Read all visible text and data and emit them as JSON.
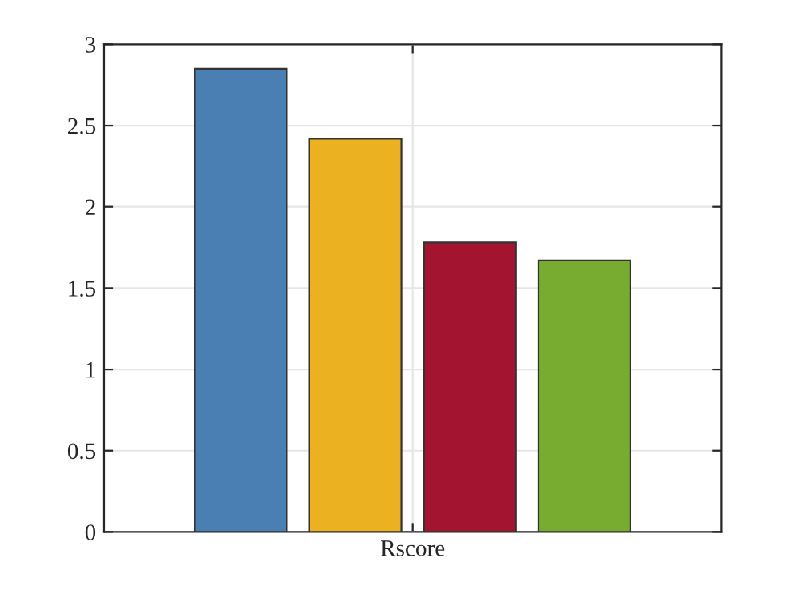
{
  "chart_data": {
    "type": "bar",
    "categories": [
      "Rscore"
    ],
    "series": [
      {
        "color": "#4a7fb3",
        "values": [
          2.85
        ]
      },
      {
        "color": "#ecb120",
        "values": [
          2.42
        ]
      },
      {
        "color": "#a2142f",
        "values": [
          1.78
        ]
      },
      {
        "color": "#77ac30",
        "values": [
          1.67
        ]
      }
    ],
    "ylim": [
      0,
      3
    ],
    "yticks": [
      0,
      0.5,
      1,
      1.5,
      2,
      2.5,
      3
    ],
    "grid": true,
    "legend": false
  }
}
